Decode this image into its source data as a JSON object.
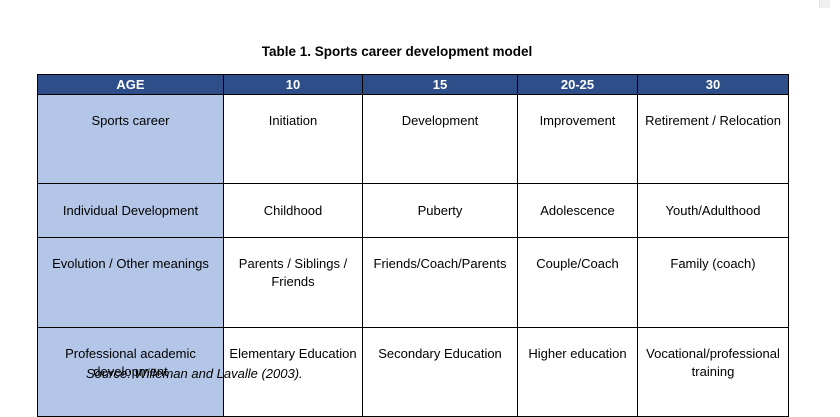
{
  "caption": "Table 1. Sports career development model",
  "table": {
    "header": [
      "AGE",
      "10",
      "15",
      "20-25",
      "30"
    ],
    "rows": [
      {
        "label": "Sports career",
        "cells": [
          "Initiation",
          "Development",
          "Improvement",
          "Retirement / Relocation"
        ]
      },
      {
        "label": "Individual Development",
        "cells": [
          "Childhood",
          "Puberty",
          "Adolescence",
          "Youth/Adulthood"
        ]
      },
      {
        "label": "Evolution / Other meanings",
        "cells": [
          "Parents / Siblings / Friends",
          "Friends/Coach/Parents",
          "Couple/Coach",
          "Family (coach)"
        ]
      },
      {
        "label": "Professional academic development",
        "cells": [
          "Elementary Education",
          "Secondary Education",
          "Higher education",
          "Vocational/professional training"
        ]
      }
    ]
  },
  "source": "Source: Willeman and Lavalle (2003).",
  "colors": {
    "header_bg": "#2e4e8a",
    "row_label_bg": "#b4c6e7",
    "border": "#000000"
  }
}
